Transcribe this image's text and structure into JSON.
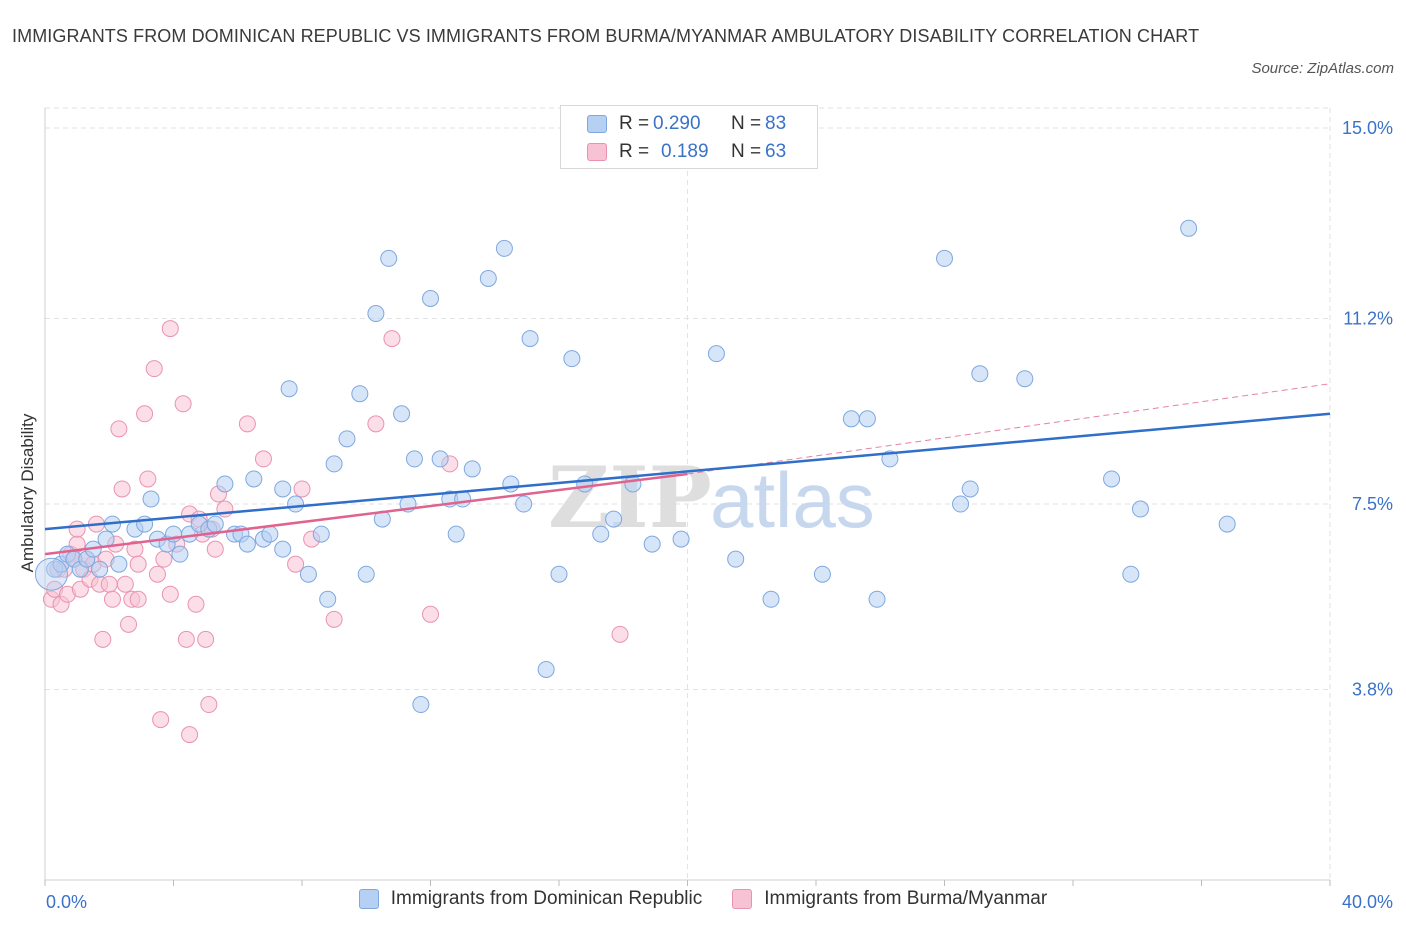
{
  "header": {
    "title": "IMMIGRANTS FROM DOMINICAN REPUBLIC VS IMMIGRANTS FROM BURMA/MYANMAR AMBULATORY DISABILITY CORRELATION CHART",
    "source": "Source: ZipAtlas.com"
  },
  "watermark": {
    "zip": "ZIP",
    "atlas": "atlas"
  },
  "legend": {
    "blue": {
      "r_label": "R =",
      "r_value": "0.290",
      "n_label": "N =",
      "n_value": "83"
    },
    "pink": {
      "r_label": "R =",
      "r_value": "0.189",
      "n_label": "N =",
      "n_value": "63"
    }
  },
  "colors": {
    "blue_fill": "#b5d0f2",
    "blue_stroke": "#7ea8e0",
    "blue_line": "#2f6ec9",
    "pink_fill": "#f7c3d4",
    "pink_stroke": "#e993b0",
    "pink_line": "#e0628f",
    "axis_label": "#3a72c8",
    "grid": "#e2e2e2"
  },
  "chart_data": {
    "type": "scatter",
    "title": "IMMIGRANTS FROM DOMINICAN REPUBLIC VS IMMIGRANTS FROM BURMA/MYANMAR AMBULATORY DISABILITY CORRELATION CHART",
    "xlabel": "",
    "ylabel": "Ambulatory Disability",
    "xlim": [
      0,
      40
    ],
    "ylim": [
      0,
      15.4
    ],
    "x_tick_labels": [
      "0.0%",
      "40.0%"
    ],
    "y_ticks": [
      3.8,
      7.5,
      11.2,
      15.0
    ],
    "y_tick_labels": [
      "3.8%",
      "7.5%",
      "11.2%",
      "15.0%"
    ],
    "grid": true,
    "legend_position": "top-center",
    "series": [
      {
        "name": "Immigrants from Dominican Republic",
        "color": "blue",
        "trend": {
          "x": [
            0,
            40
          ],
          "y": [
            7.0,
            9.3
          ]
        },
        "points": [
          [
            0.3,
            6.2
          ],
          [
            0.5,
            6.3
          ],
          [
            0.7,
            6.5
          ],
          [
            0.9,
            6.4
          ],
          [
            1.1,
            6.2
          ],
          [
            1.3,
            6.4
          ],
          [
            1.5,
            6.6
          ],
          [
            1.7,
            6.2
          ],
          [
            1.9,
            6.8
          ],
          [
            2.1,
            7.1
          ],
          [
            2.3,
            6.3
          ],
          [
            2.8,
            7.0
          ],
          [
            3.1,
            7.1
          ],
          [
            3.3,
            7.6
          ],
          [
            3.5,
            6.8
          ],
          [
            3.8,
            6.7
          ],
          [
            4.0,
            6.9
          ],
          [
            4.2,
            6.5
          ],
          [
            4.5,
            6.9
          ],
          [
            4.8,
            7.1
          ],
          [
            5.1,
            7.0
          ],
          [
            5.3,
            7.1
          ],
          [
            5.6,
            7.9
          ],
          [
            5.9,
            6.9
          ],
          [
            6.1,
            6.9
          ],
          [
            6.3,
            6.7
          ],
          [
            6.5,
            8.0
          ],
          [
            6.8,
            6.8
          ],
          [
            7.0,
            6.9
          ],
          [
            7.4,
            6.6
          ],
          [
            7.4,
            7.8
          ],
          [
            7.6,
            9.8
          ],
          [
            7.8,
            7.5
          ],
          [
            8.2,
            6.1
          ],
          [
            8.6,
            6.9
          ],
          [
            8.8,
            5.6
          ],
          [
            9.0,
            8.3
          ],
          [
            9.4,
            8.8
          ],
          [
            9.8,
            9.7
          ],
          [
            10.0,
            6.1
          ],
          [
            10.3,
            11.3
          ],
          [
            10.5,
            7.2
          ],
          [
            10.7,
            12.4
          ],
          [
            11.1,
            9.3
          ],
          [
            11.3,
            7.5
          ],
          [
            11.5,
            8.4
          ],
          [
            11.7,
            3.5
          ],
          [
            12.0,
            11.6
          ],
          [
            12.3,
            8.4
          ],
          [
            12.6,
            7.6
          ],
          [
            12.8,
            6.9
          ],
          [
            13.0,
            7.6
          ],
          [
            13.3,
            8.2
          ],
          [
            13.8,
            12.0
          ],
          [
            14.3,
            12.6
          ],
          [
            14.5,
            7.9
          ],
          [
            14.9,
            7.5
          ],
          [
            15.1,
            10.8
          ],
          [
            15.6,
            4.2
          ],
          [
            16.0,
            6.1
          ],
          [
            16.4,
            10.4
          ],
          [
            16.8,
            7.9
          ],
          [
            17.3,
            6.9
          ],
          [
            17.7,
            7.2
          ],
          [
            18.3,
            7.9
          ],
          [
            18.9,
            6.7
          ],
          [
            19.8,
            6.8
          ],
          [
            20.9,
            10.5
          ],
          [
            21.5,
            6.4
          ],
          [
            22.6,
            5.6
          ],
          [
            24.2,
            6.1
          ],
          [
            25.1,
            9.2
          ],
          [
            25.6,
            9.2
          ],
          [
            25.9,
            5.6
          ],
          [
            26.3,
            8.4
          ],
          [
            28.0,
            12.4
          ],
          [
            28.5,
            7.5
          ],
          [
            28.8,
            7.8
          ],
          [
            29.1,
            10.1
          ],
          [
            30.5,
            10.0
          ],
          [
            33.2,
            8.0
          ],
          [
            33.8,
            6.1
          ],
          [
            34.1,
            7.4
          ],
          [
            35.6,
            13.0
          ],
          [
            36.8,
            7.1
          ]
        ]
      },
      {
        "name": "Immigrants from Burma/Myanmar",
        "color": "pink",
        "trend": {
          "x": [
            0,
            20
          ],
          "y": [
            6.5,
            8.1
          ]
        },
        "trend_extended": {
          "x": [
            20,
            40
          ],
          "y": [
            8.1,
            9.9
          ]
        },
        "points": [
          [
            0.2,
            5.6
          ],
          [
            0.3,
            5.8
          ],
          [
            0.4,
            6.2
          ],
          [
            0.5,
            5.5
          ],
          [
            0.6,
            6.2
          ],
          [
            0.7,
            5.7
          ],
          [
            0.8,
            6.5
          ],
          [
            0.9,
            6.4
          ],
          [
            1.0,
            6.7
          ],
          [
            1.1,
            5.8
          ],
          [
            1.2,
            6.2
          ],
          [
            1.3,
            6.4
          ],
          [
            1.4,
            6.0
          ],
          [
            1.5,
            6.3
          ],
          [
            1.6,
            7.1
          ],
          [
            1.7,
            5.9
          ],
          [
            1.8,
            4.8
          ],
          [
            1.9,
            6.4
          ],
          [
            2.0,
            5.9
          ],
          [
            2.1,
            5.6
          ],
          [
            2.2,
            6.7
          ],
          [
            2.3,
            9.0
          ],
          [
            2.4,
            7.8
          ],
          [
            2.5,
            5.9
          ],
          [
            2.6,
            5.1
          ],
          [
            2.7,
            5.6
          ],
          [
            2.8,
            6.6
          ],
          [
            2.9,
            6.3
          ],
          [
            3.1,
            9.3
          ],
          [
            3.2,
            8.0
          ],
          [
            3.4,
            10.2
          ],
          [
            3.5,
            6.1
          ],
          [
            3.6,
            3.2
          ],
          [
            3.7,
            6.4
          ],
          [
            3.9,
            5.7
          ],
          [
            3.9,
            11.0
          ],
          [
            4.1,
            6.7
          ],
          [
            4.3,
            9.5
          ],
          [
            4.4,
            4.8
          ],
          [
            4.5,
            7.3
          ],
          [
            4.5,
            2.9
          ],
          [
            4.7,
            5.5
          ],
          [
            4.8,
            7.2
          ],
          [
            4.9,
            6.9
          ],
          [
            5.0,
            4.8
          ],
          [
            5.1,
            3.5
          ],
          [
            5.2,
            7.0
          ],
          [
            5.3,
            6.6
          ],
          [
            5.4,
            7.7
          ],
          [
            5.6,
            7.4
          ],
          [
            6.3,
            9.1
          ],
          [
            6.8,
            8.4
          ],
          [
            7.8,
            6.3
          ],
          [
            8.0,
            7.8
          ],
          [
            8.3,
            6.8
          ],
          [
            9.0,
            5.2
          ],
          [
            10.3,
            9.1
          ],
          [
            10.8,
            10.8
          ],
          [
            12.0,
            5.3
          ],
          [
            12.6,
            8.3
          ],
          [
            17.9,
            4.9
          ],
          [
            1.0,
            7.0
          ],
          [
            2.9,
            5.6
          ]
        ]
      }
    ]
  }
}
